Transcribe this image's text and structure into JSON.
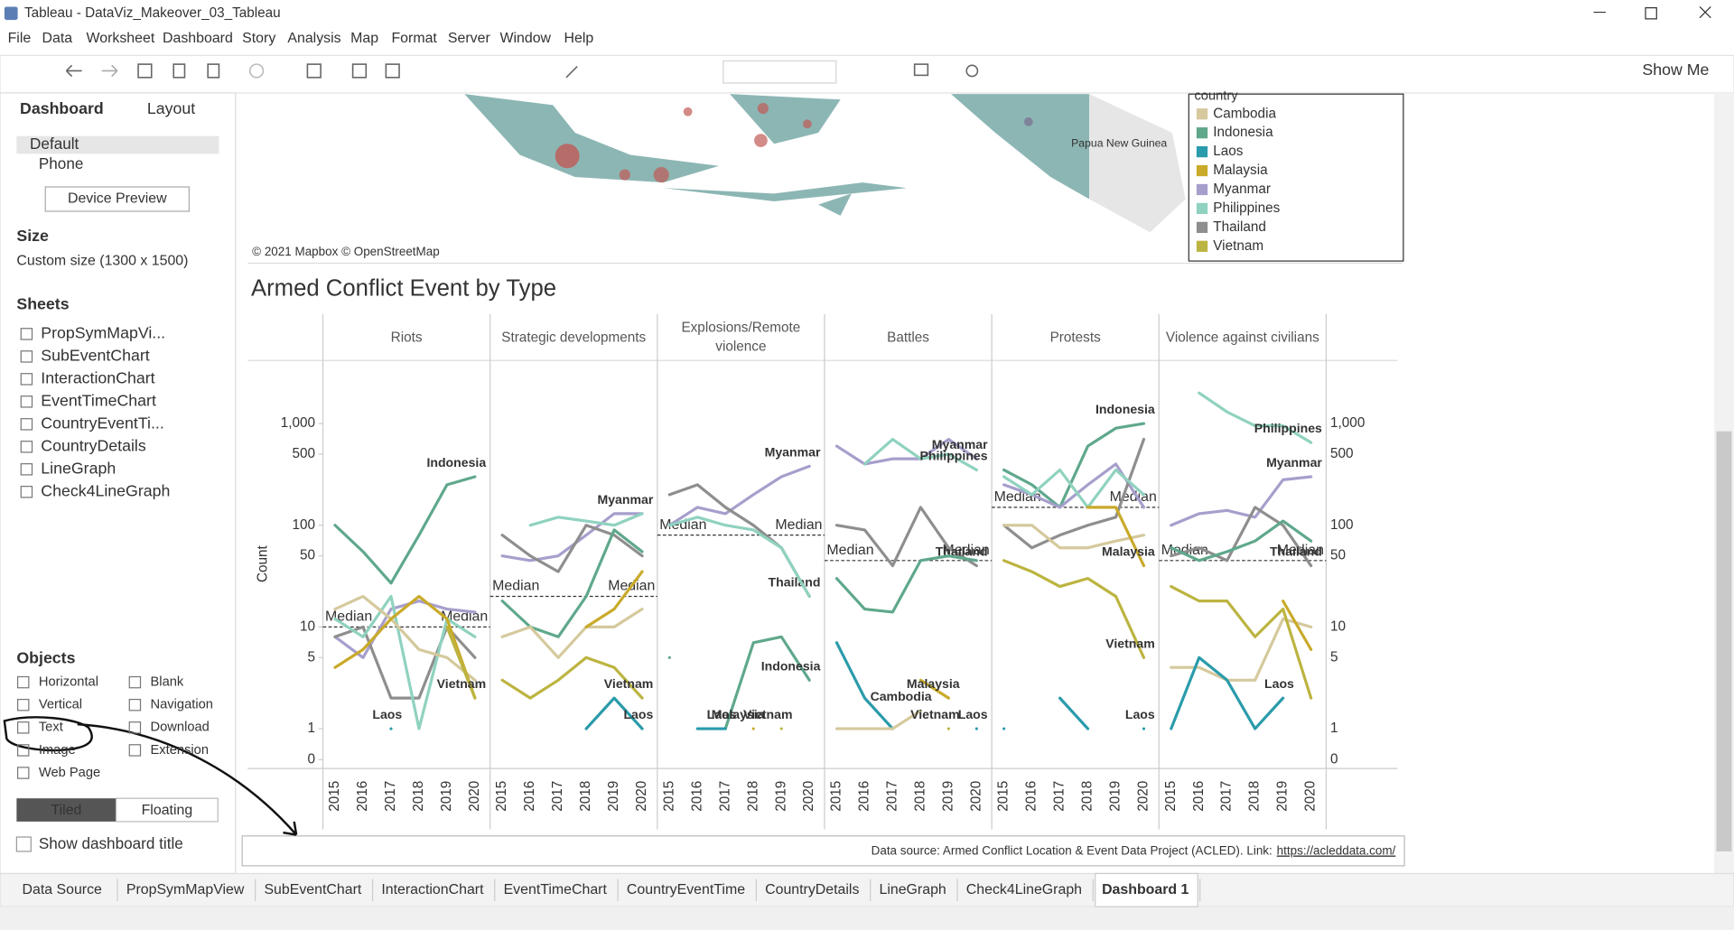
{
  "window_title": "Tableau - DataViz_Makeover_03_Tableau",
  "menu": [
    "File",
    "Data",
    "Worksheet",
    "Dashboard",
    "Story",
    "Analysis",
    "Map",
    "Format",
    "Server",
    "Window",
    "Help"
  ],
  "show_me": "Show Me",
  "sidebar": {
    "tabs": [
      "Dashboard",
      "Layout"
    ],
    "devices": [
      "Default",
      "Phone"
    ],
    "device_preview": "Device Preview",
    "size_heading": "Size",
    "size_value": "Custom size (1300 x 1500)",
    "sheets_heading": "Sheets",
    "sheets": [
      "PropSymMapVi...",
      "SubEventChart",
      "InteractionChart",
      "EventTimeChart",
      "CountryEventTi...",
      "CountryDetails",
      "LineGraph",
      "Check4LineGraph"
    ],
    "objects_heading": "Objects",
    "objects": [
      "Horizontal",
      "Blank",
      "Vertical",
      "Navigation",
      "Text",
      "Download",
      "Image",
      "Extension",
      "Web Page"
    ],
    "layout_modes": [
      "Tiled",
      "Floating"
    ],
    "show_title": "Show dashboard title"
  },
  "map": {
    "attribution": "© 2021 Mapbox © OpenStreetMap",
    "place": "Papua New Guinea"
  },
  "legend": {
    "title": "country",
    "items": [
      {
        "name": "Cambodia",
        "color": "#d5c99d"
      },
      {
        "name": "Indonesia",
        "color": "#5fa88c"
      },
      {
        "name": "Laos",
        "color": "#2a9bab"
      },
      {
        "name": "Malaysia",
        "color": "#c9aa2a"
      },
      {
        "name": "Myanmar",
        "color": "#a69fcc"
      },
      {
        "name": "Philippines",
        "color": "#8fd2bf"
      },
      {
        "name": "Thailand",
        "color": "#8e8e8e"
      },
      {
        "name": "Vietnam",
        "color": "#bcb440"
      }
    ]
  },
  "chart_data": {
    "type": "line",
    "title": "Armed Conflict Event by Type",
    "y_label": "Count",
    "scale": "log",
    "median_label": "Median",
    "years": [
      "2015",
      "2016",
      "2017",
      "2018",
      "2019",
      "2020"
    ],
    "ylim": [
      0,
      1000
    ],
    "yticks": [
      0,
      1,
      5,
      10,
      50,
      100,
      500,
      {
        "value": 1000,
        "label": "1,000"
      }
    ],
    "panels": [
      {
        "name": "Riots",
        "median": 10,
        "series": [
          {
            "country": "Indonesia",
            "values": [
              100,
              55,
              27,
              80,
              250,
              300
            ],
            "label": "Indonesia"
          },
          {
            "country": "Myanmar",
            "values": [
              8,
              5,
              15,
              18,
              15,
              14
            ]
          },
          {
            "country": "Thailand",
            "values": [
              8,
              10,
              2,
              2,
              10,
              5
            ]
          },
          {
            "country": "Philippines",
            "values": [
              12,
              8,
              20,
              1,
              12,
              8
            ]
          },
          {
            "country": "Cambodia",
            "values": [
              15,
              20,
              12,
              6,
              5,
              3
            ]
          },
          {
            "country": "Malaysia",
            "values": [
              4,
              6,
              12,
              20,
              12,
              2
            ]
          },
          {
            "country": "Laos",
            "values": [
              null,
              null,
              1,
              null,
              null,
              null
            ],
            "label": "Laos"
          },
          {
            "country": "Vietnam",
            "values": [
              null,
              null,
              null,
              null,
              10,
              2
            ],
            "label": "Vietnam"
          }
        ]
      },
      {
        "name": "Strategic developments",
        "median": 20,
        "series": [
          {
            "country": "Myanmar",
            "values": [
              50,
              45,
              50,
              80,
              130,
              130
            ],
            "label": "Myanmar"
          },
          {
            "country": "Thailand",
            "values": [
              80,
              50,
              35,
              100,
              80,
              50
            ]
          },
          {
            "country": "Philippines",
            "values": [
              null,
              100,
              120,
              110,
              100,
              130
            ]
          },
          {
            "country": "Indonesia",
            "values": [
              18,
              10,
              8,
              20,
              90,
              55
            ]
          },
          {
            "country": "Cambodia",
            "values": [
              8,
              10,
              5,
              10,
              10,
              15
            ]
          },
          {
            "country": "Malaysia",
            "values": [
              null,
              null,
              null,
              10,
              15,
              35
            ]
          },
          {
            "country": "Vietnam",
            "values": [
              3,
              2,
              3,
              5,
              4,
              2
            ],
            "label": "Vietnam"
          },
          {
            "country": "Laos",
            "values": [
              null,
              null,
              null,
              1,
              2,
              1
            ],
            "label": "Laos"
          }
        ]
      },
      {
        "name": "Explosions/Remote violence",
        "median": 80,
        "series": [
          {
            "country": "Myanmar",
            "values": [
              100,
              150,
              130,
              200,
              300,
              380
            ],
            "label": "Myanmar"
          },
          {
            "country": "Thailand",
            "values": [
              200,
              250,
              150,
              100,
              60,
              20
            ],
            "label": "Thailand"
          },
          {
            "country": "Philippines",
            "values": [
              100,
              120,
              100,
              90,
              60,
              20
            ]
          },
          {
            "country": "Indonesia",
            "values": [
              5,
              null,
              1,
              7,
              8,
              3
            ],
            "label": "Indonesia"
          },
          {
            "country": "Laos",
            "values": [
              null,
              1,
              1,
              null,
              null,
              null
            ],
            "label": "Laos"
          },
          {
            "country": "Malaysia",
            "values": [
              null,
              null,
              null,
              1,
              null,
              null
            ],
            "label": "Malaysia"
          },
          {
            "country": "Vietnam",
            "values": [
              null,
              null,
              null,
              null,
              1,
              null
            ],
            "label": "Vietnam"
          }
        ]
      },
      {
        "name": "Battles",
        "median": 45,
        "series": [
          {
            "country": "Myanmar",
            "values": [
              600,
              400,
              450,
              450,
              700,
              450
            ],
            "label": "Myanmar"
          },
          {
            "country": "Philippines",
            "values": [
              null,
              400,
              700,
              450,
              500,
              350
            ],
            "label": "Philippines"
          },
          {
            "country": "Thailand",
            "values": [
              100,
              90,
              40,
              150,
              60,
              40
            ],
            "label": "Thailand"
          },
          {
            "country": "Indonesia",
            "values": [
              30,
              15,
              14,
              45,
              50,
              45
            ]
          },
          {
            "country": "Laos",
            "values": [
              7,
              2,
              1,
              null,
              null,
              1
            ],
            "label": "Laos"
          },
          {
            "country": "Malaysia",
            "values": [
              null,
              null,
              null,
              3,
              2,
              null
            ],
            "label": "Malaysia"
          },
          {
            "country": "Cambodia",
            "values": [
              1,
              1,
              1,
              1.5,
              null,
              null
            ],
            "label": "Cambodia"
          },
          {
            "country": "Vietnam",
            "values": [
              null,
              null,
              null,
              null,
              1,
              null
            ],
            "label": "Vietnam"
          }
        ]
      },
      {
        "name": "Protests",
        "median": 150,
        "series": [
          {
            "country": "Indonesia",
            "values": [
              350,
              250,
              150,
              600,
              900,
              1000
            ],
            "label": "Indonesia"
          },
          {
            "country": "Myanmar",
            "values": [
              250,
              200,
              150,
              250,
              400,
              150
            ]
          },
          {
            "country": "Thailand",
            "values": [
              100,
              60,
              80,
              100,
              120,
              700
            ]
          },
          {
            "country": "Philippines",
            "values": [
              300,
              200,
              350,
              150,
              350,
              200
            ]
          },
          {
            "country": "Cambodia",
            "values": [
              100,
              100,
              60,
              60,
              70,
              80
            ]
          },
          {
            "country": "Malaysia",
            "values": [
              null,
              null,
              null,
              150,
              150,
              40
            ],
            "label": "Malaysia"
          },
          {
            "country": "Vietnam",
            "values": [
              45,
              35,
              25,
              30,
              20,
              5
            ],
            "label": "Vietnam"
          },
          {
            "country": "Laos",
            "values": [
              1,
              null,
              2,
              1,
              null,
              1
            ],
            "label": "Laos"
          }
        ]
      },
      {
        "name": "Violence against civilians",
        "median": 45,
        "series": [
          {
            "country": "Philippines",
            "values": [
              null,
              2000,
              1300,
              950,
              950,
              650
            ],
            "label": "Philippines"
          },
          {
            "country": "Myanmar",
            "values": [
              100,
              130,
              140,
              120,
              280,
              300
            ],
            "label": "Myanmar"
          },
          {
            "country": "Thailand",
            "values": [
              50,
              60,
              45,
              150,
              100,
              40
            ],
            "label": "Thailand"
          },
          {
            "country": "Indonesia",
            "values": [
              60,
              45,
              55,
              70,
              110,
              70
            ]
          },
          {
            "country": "Cambodia",
            "values": [
              4,
              4,
              3,
              3,
              12,
              10
            ]
          },
          {
            "country": "Malaysia",
            "values": [
              null,
              null,
              null,
              null,
              18,
              6
            ]
          },
          {
            "country": "Vietnam",
            "values": [
              25,
              18,
              18,
              8,
              15,
              2
            ]
          },
          {
            "country": "Laos",
            "values": [
              1,
              5,
              3,
              1,
              2,
              null
            ],
            "label": "Laos"
          }
        ]
      }
    ]
  },
  "footer": {
    "source": "Data source: Armed Conflict Location & Event Data Project (ACLED). Link:",
    "link": "https://acleddata.com/"
  },
  "tabs": [
    "Data Source",
    "PropSymMapView",
    "SubEventChart",
    "InteractionChart",
    "EventTimeChart",
    "CountryEventTime",
    "CountryDetails",
    "LineGraph",
    "Check4LineGraph",
    "Dashboard 1"
  ]
}
